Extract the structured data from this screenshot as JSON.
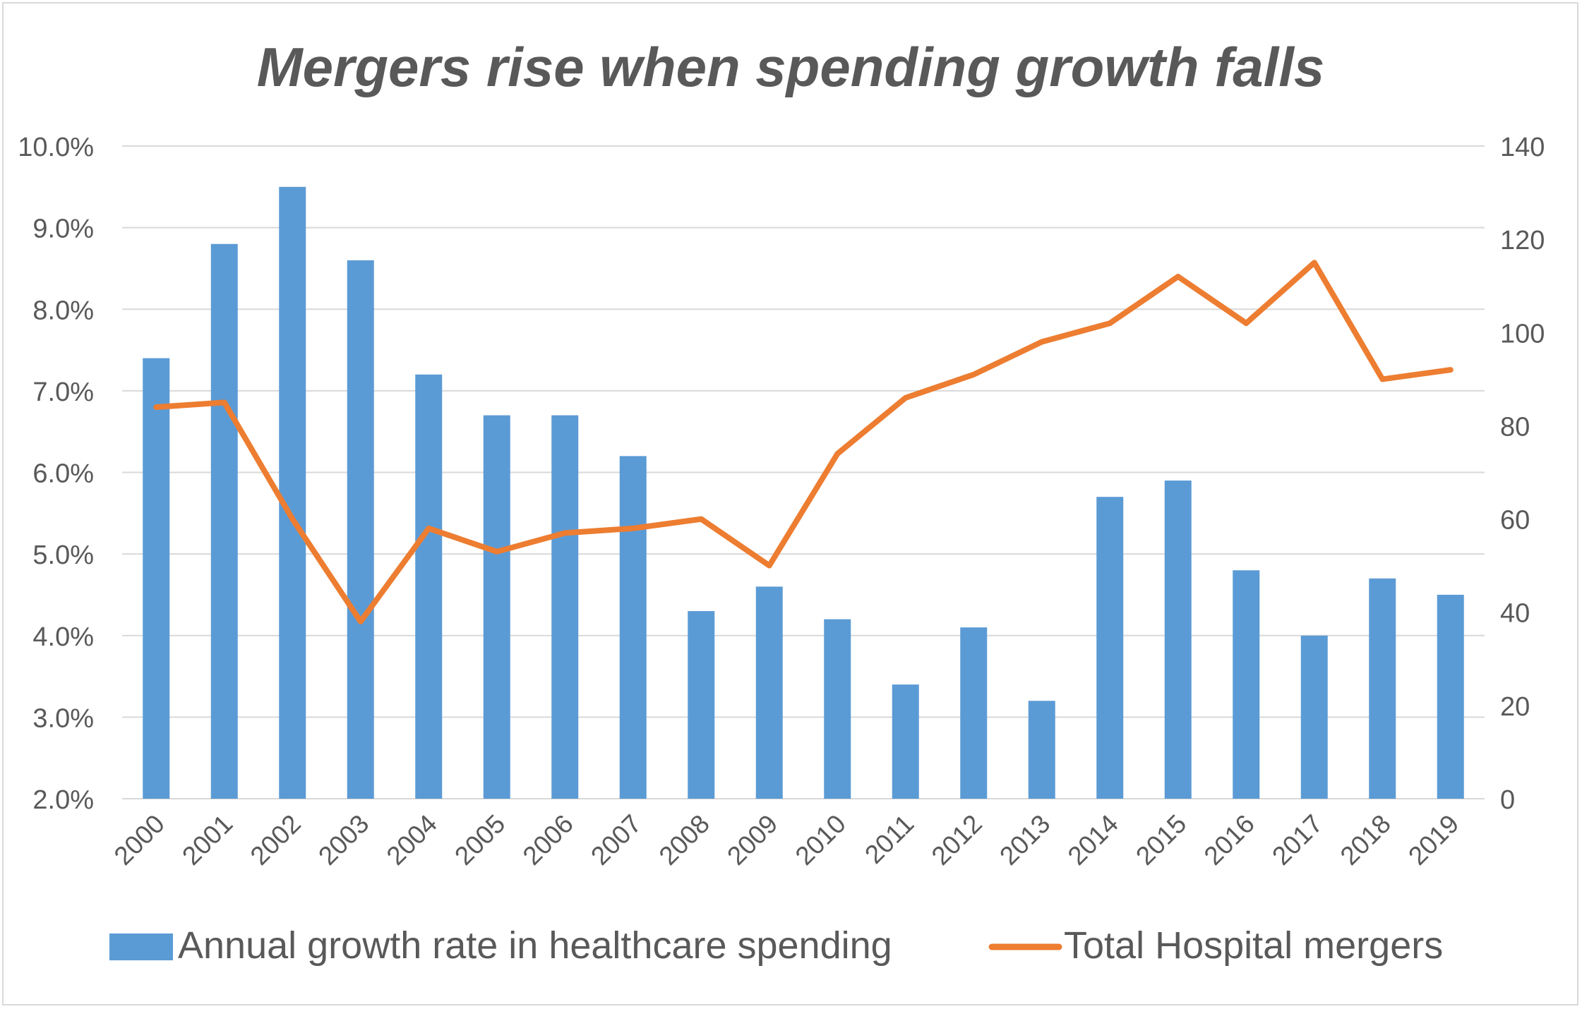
{
  "chart_data": {
    "type": "bar",
    "title": "Mergers rise when spending growth falls",
    "categories": [
      "2000",
      "2001",
      "2002",
      "2003",
      "2004",
      "2005",
      "2006",
      "2007",
      "2008",
      "2009",
      "2010",
      "2011",
      "2012",
      "2013",
      "2014",
      "2015",
      "2016",
      "2017",
      "2018",
      "2019"
    ],
    "series": [
      {
        "name": "Annual growth rate in healthcare spending",
        "type": "bar",
        "axis": "left",
        "color": "#5b9bd5",
        "values": [
          7.4,
          8.8,
          9.5,
          8.6,
          7.2,
          6.7,
          6.7,
          6.2,
          4.3,
          4.6,
          4.2,
          3.4,
          4.1,
          3.2,
          5.7,
          5.9,
          4.8,
          4.0,
          4.7,
          4.5
        ]
      },
      {
        "name": "Total Hospital mergers",
        "type": "line",
        "axis": "right",
        "color": "#ed7d31",
        "values": [
          84,
          85,
          60,
          38,
          58,
          53,
          57,
          58,
          60,
          50,
          74,
          86,
          91,
          98,
          102,
          112,
          102,
          115,
          90,
          92
        ]
      }
    ],
    "y_left": {
      "min": 2.0,
      "max": 10.0,
      "step": 1.0,
      "tick_labels": [
        "2.0%",
        "3.0%",
        "4.0%",
        "5.0%",
        "6.0%",
        "7.0%",
        "8.0%",
        "9.0%",
        "10.0%"
      ]
    },
    "y_right": {
      "min": 0,
      "max": 140,
      "step": 20,
      "tick_labels": [
        "0",
        "20",
        "40",
        "60",
        "80",
        "100",
        "120",
        "140"
      ]
    },
    "grid": true,
    "legend_position": "bottom"
  }
}
